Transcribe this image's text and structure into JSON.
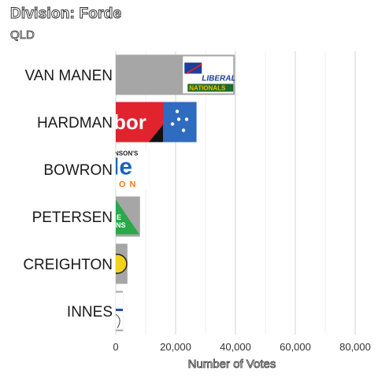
{
  "header": {
    "title": "Division: Forde",
    "subtitle": "QLD"
  },
  "chart_data": {
    "type": "bar",
    "orientation": "horizontal",
    "title": "Division: Forde",
    "subtitle": "QLD",
    "xlabel": "Number of Votes",
    "ylabel": "",
    "xlim": [
      0,
      85000
    ],
    "x_ticks": [
      0,
      20000,
      40000,
      60000,
      80000
    ],
    "x_tick_labels": [
      "0",
      "20,000",
      "40,000",
      "60,000",
      "80,000"
    ],
    "grid": true,
    "categories": [
      "VAN MANEN",
      "HARDMAN",
      "BOWRON",
      "PETERSEN",
      "CREIGHTON",
      "INNES"
    ],
    "values": [
      39800,
      27000,
      11200,
      8100,
      3900,
      2400
    ],
    "bar_color": "#a6a6a6",
    "logos": [
      "liberal-nationals-logo",
      "labor-logo",
      "one-nation-logo",
      "greens-logo",
      "party-logo-yellow",
      "party-logo-blue"
    ]
  }
}
